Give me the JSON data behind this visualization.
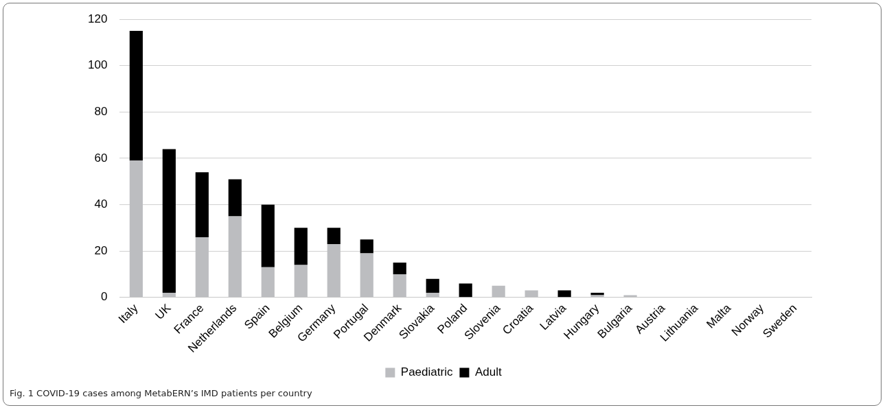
{
  "chart_data": {
    "type": "bar",
    "stacked": true,
    "categories": [
      "Italy",
      "UK",
      "France",
      "Netherlands",
      "Spain",
      "Belgium",
      "Germany",
      "Portugal",
      "Denmark",
      "Slovakia",
      "Poland",
      "Slovenia",
      "Croatia",
      "Latvia",
      "Hungary",
      "Bulgaria",
      "Austria",
      "Lithuania",
      "Malta",
      "Norway",
      "Sweden"
    ],
    "series": [
      {
        "name": "Paediatric",
        "color": "#bcbdc0",
        "values": [
          59,
          2,
          26,
          35,
          13,
          14,
          23,
          19,
          10,
          2,
          0,
          5,
          3,
          0,
          1,
          1,
          0,
          0,
          0,
          0,
          0
        ]
      },
      {
        "name": "Adult",
        "color": "#000000",
        "values": [
          56,
          62,
          28,
          16,
          27,
          16,
          7,
          6,
          5,
          6,
          6,
          0,
          0,
          3,
          1,
          0,
          0,
          0,
          0,
          0,
          0
        ]
      }
    ],
    "ylim": [
      0,
      120
    ],
    "yticks": [
      0,
      20,
      40,
      60,
      80,
      100,
      120
    ],
    "grid": "y",
    "legend": "bottom",
    "annotations": [
      "Fig. 1  COVID-19 cases among MetabERN’s IMD patients per country"
    ]
  }
}
